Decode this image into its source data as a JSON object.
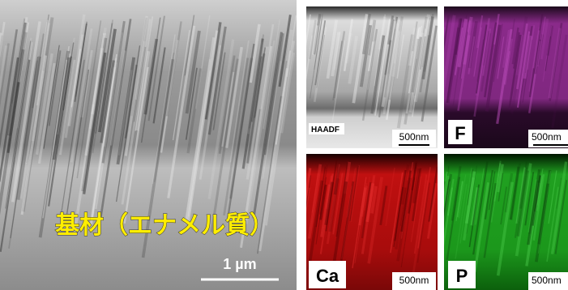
{
  "main_image": {
    "label": "基材（エナメル質）",
    "scale_bar": "1 µm"
  },
  "maps": [
    {
      "label": "HAADF",
      "scale_bar": "500nm"
    },
    {
      "label": "F",
      "scale_bar": "500nm"
    },
    {
      "label": "Ca",
      "scale_bar": "500nm"
    },
    {
      "label": "P",
      "scale_bar": "500nm"
    }
  ]
}
